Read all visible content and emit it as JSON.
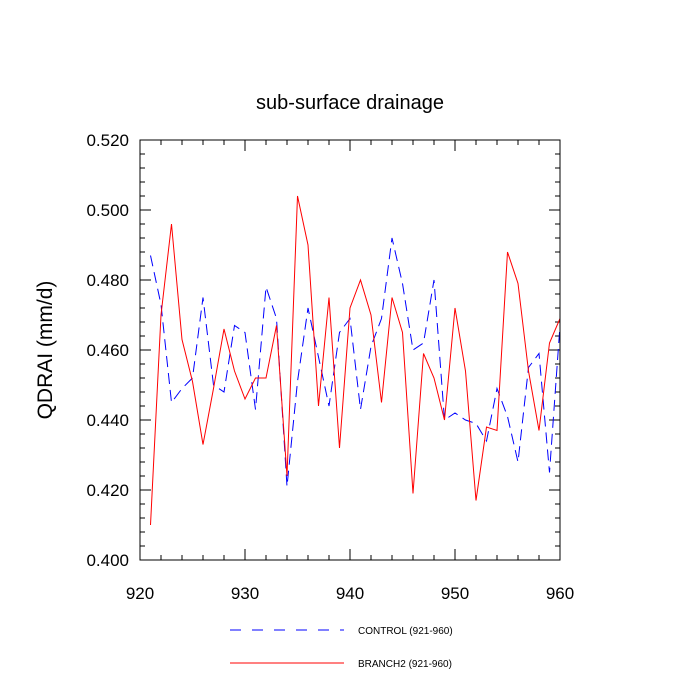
{
  "chart_data": {
    "type": "line",
    "title": "sub-surface drainage",
    "xlabel": "",
    "ylabel": "QDRAI  (mm/d)",
    "xlim": [
      920,
      960
    ],
    "ylim": [
      0.4,
      0.52
    ],
    "x_ticks": [
      920,
      930,
      940,
      950,
      960
    ],
    "x_tick_labels": [
      "920",
      "930",
      "940",
      "950",
      "960"
    ],
    "y_ticks": [
      0.4,
      0.42,
      0.44,
      0.46,
      0.48,
      0.5,
      0.52
    ],
    "y_tick_labels": [
      "0.400",
      "0.420",
      "0.440",
      "0.460",
      "0.480",
      "0.500",
      "0.520"
    ],
    "grid": false,
    "legend_position": "bottom",
    "x": [
      921,
      922,
      923,
      924,
      925,
      926,
      927,
      928,
      929,
      930,
      931,
      932,
      933,
      934,
      935,
      936,
      937,
      938,
      939,
      940,
      941,
      942,
      943,
      944,
      945,
      946,
      947,
      948,
      949,
      950,
      951,
      952,
      953,
      954,
      955,
      956,
      957,
      958,
      959,
      960
    ],
    "series": [
      {
        "name": "CONTROL (921-960)",
        "color": "#0000ff",
        "dash": "dashed",
        "values": [
          0.487,
          0.473,
          0.445,
          0.449,
          0.452,
          0.475,
          0.45,
          0.448,
          0.467,
          0.465,
          0.443,
          0.478,
          0.469,
          0.421,
          0.451,
          0.472,
          0.458,
          0.444,
          0.465,
          0.469,
          0.443,
          0.461,
          0.469,
          0.492,
          0.479,
          0.46,
          0.462,
          0.48,
          0.44,
          0.442,
          0.44,
          0.439,
          0.434,
          0.449,
          0.441,
          0.428,
          0.455,
          0.459,
          0.425,
          0.467
        ]
      },
      {
        "name": "BRANCH2 (921-960)",
        "color": "#ff0000",
        "dash": "solid",
        "values": [
          0.41,
          0.47,
          0.496,
          0.463,
          0.451,
          0.433,
          0.449,
          0.466,
          0.454,
          0.446,
          0.452,
          0.452,
          0.467,
          0.424,
          0.504,
          0.49,
          0.444,
          0.475,
          0.432,
          0.472,
          0.48,
          0.47,
          0.445,
          0.475,
          0.465,
          0.419,
          0.459,
          0.452,
          0.44,
          0.472,
          0.454,
          0.417,
          0.438,
          0.437,
          0.488,
          0.479,
          0.454,
          0.437,
          0.462,
          0.469
        ]
      }
    ]
  }
}
